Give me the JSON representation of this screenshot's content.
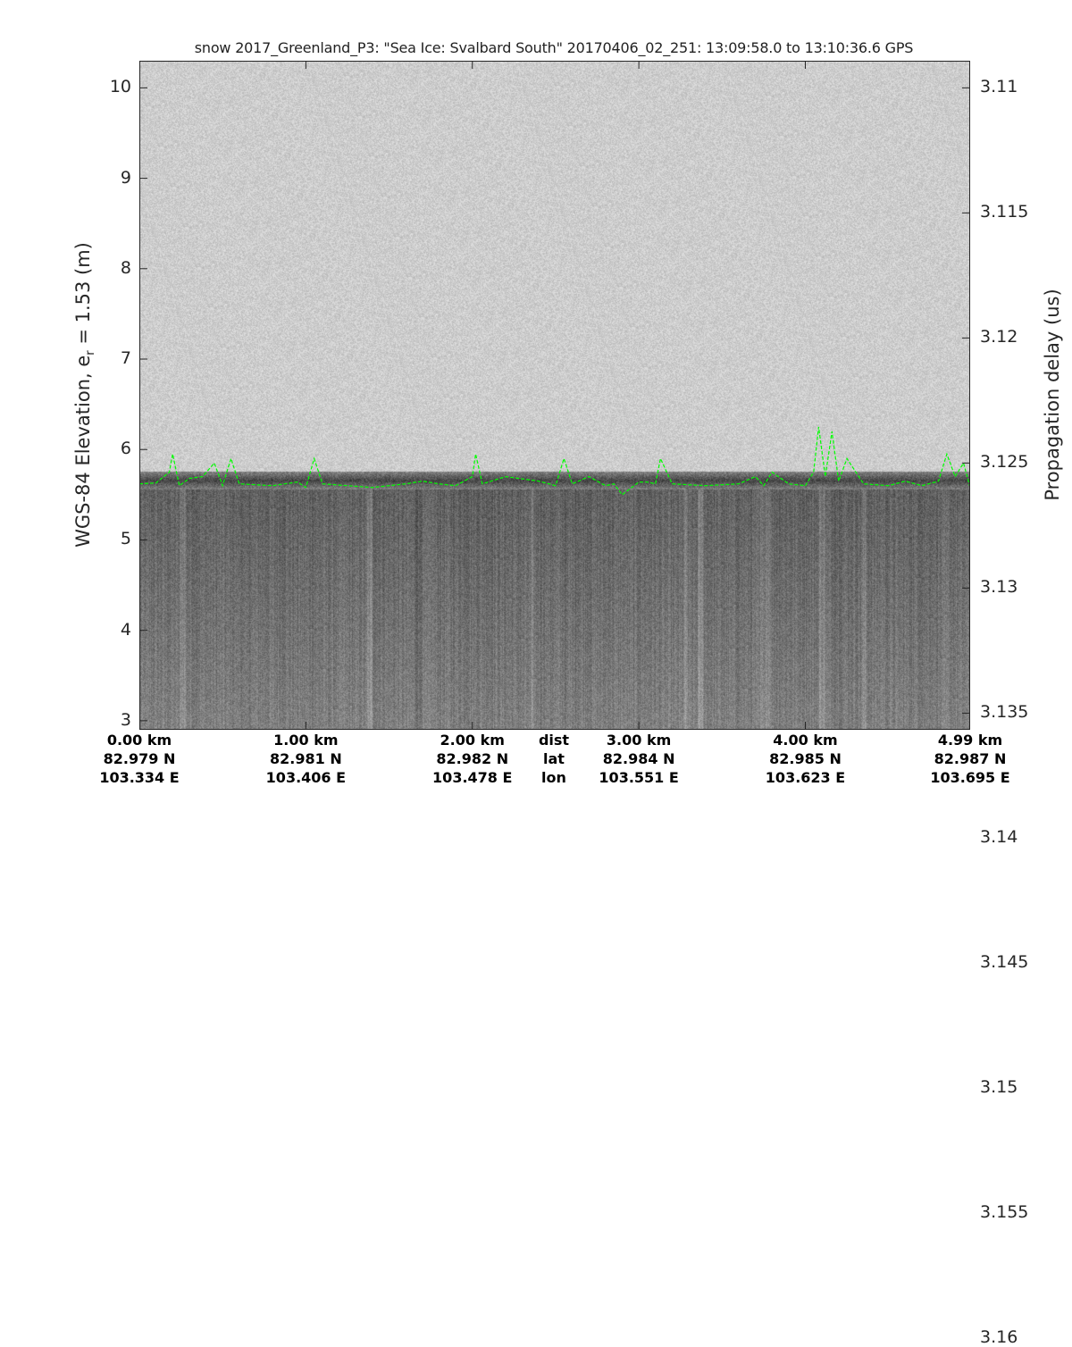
{
  "chart_data": {
    "type": "heatmap",
    "title": "snow 2017_Greenland_P3: \"Sea Ice: Svalbard South\"  20170406_02_251: 13:09:58.0 to 13:10:36.6 GPS",
    "ylabel_left": "WGS-84 Elevation, e",
    "ylabel_left_sub": "r",
    "ylabel_left_tail": " = 1.53 (m)",
    "ylabel_right": "Propagation delay (us)",
    "ylim_left": [
      2.9,
      10.3
    ],
    "yticks_left": [
      "3",
      "4",
      "5",
      "6",
      "7",
      "8",
      "9",
      "10"
    ],
    "yticks_right": [
      "3.11",
      "3.115",
      "3.12",
      "3.125",
      "3.13",
      "3.135",
      "3.14",
      "3.145",
      "3.15",
      "3.155",
      "3.16"
    ],
    "xlim_km": [
      0,
      4.99
    ],
    "x_columns": [
      {
        "dist": "0.00 km",
        "lat": "82.979 N",
        "lon": "103.334 E",
        "km": 0
      },
      {
        "dist": "1.00 km",
        "lat": "82.981 N",
        "lon": "103.406 E",
        "km": 1
      },
      {
        "dist": "2.00 km",
        "lat": "82.982 N",
        "lon": "103.478 E",
        "km": 2
      },
      {
        "dist": "3.00 km",
        "lat": "82.984 N",
        "lon": "103.551 E",
        "km": 3
      },
      {
        "dist": "4.00 km",
        "lat": "82.985 N",
        "lon": "103.623 E",
        "km": 4
      },
      {
        "dist": "4.99 km",
        "lat": "82.987 N",
        "lon": "103.695 E",
        "km": 4.99
      }
    ],
    "row_labels": {
      "dist": "dist",
      "lat": "lat",
      "lon": "lon"
    },
    "colormap": "gray",
    "surface_layer": {
      "color": "#00ff00",
      "style": "dashed",
      "x_km": [
        0,
        0.1,
        0.18,
        0.2,
        0.24,
        0.3,
        0.38,
        0.45,
        0.5,
        0.55,
        0.6,
        0.8,
        0.95,
        1.0,
        1.05,
        1.1,
        1.25,
        1.4,
        1.6,
        1.7,
        1.8,
        1.9,
        2.0,
        2.02,
        2.06,
        2.2,
        2.4,
        2.5,
        2.55,
        2.6,
        2.7,
        2.8,
        2.85,
        2.9,
        3.0,
        3.05,
        3.1,
        3.13,
        3.2,
        3.4,
        3.6,
        3.7,
        3.75,
        3.8,
        3.9,
        4.0,
        4.05,
        4.08,
        4.12,
        4.16,
        4.2,
        4.25,
        4.35,
        4.5,
        4.6,
        4.7,
        4.8,
        4.85,
        4.9,
        4.95,
        4.99
      ],
      "elevation_m": [
        5.62,
        5.63,
        5.75,
        5.95,
        5.6,
        5.68,
        5.7,
        5.85,
        5.6,
        5.9,
        5.62,
        5.6,
        5.64,
        5.58,
        5.9,
        5.62,
        5.6,
        5.58,
        5.62,
        5.65,
        5.62,
        5.6,
        5.7,
        5.95,
        5.62,
        5.7,
        5.65,
        5.6,
        5.9,
        5.62,
        5.7,
        5.6,
        5.62,
        5.5,
        5.64,
        5.64,
        5.62,
        5.9,
        5.62,
        5.6,
        5.62,
        5.7,
        5.6,
        5.75,
        5.62,
        5.6,
        5.75,
        6.25,
        5.7,
        6.2,
        5.65,
        5.9,
        5.62,
        5.6,
        5.65,
        5.6,
        5.65,
        5.95,
        5.7,
        5.85,
        5.58
      ]
    }
  }
}
